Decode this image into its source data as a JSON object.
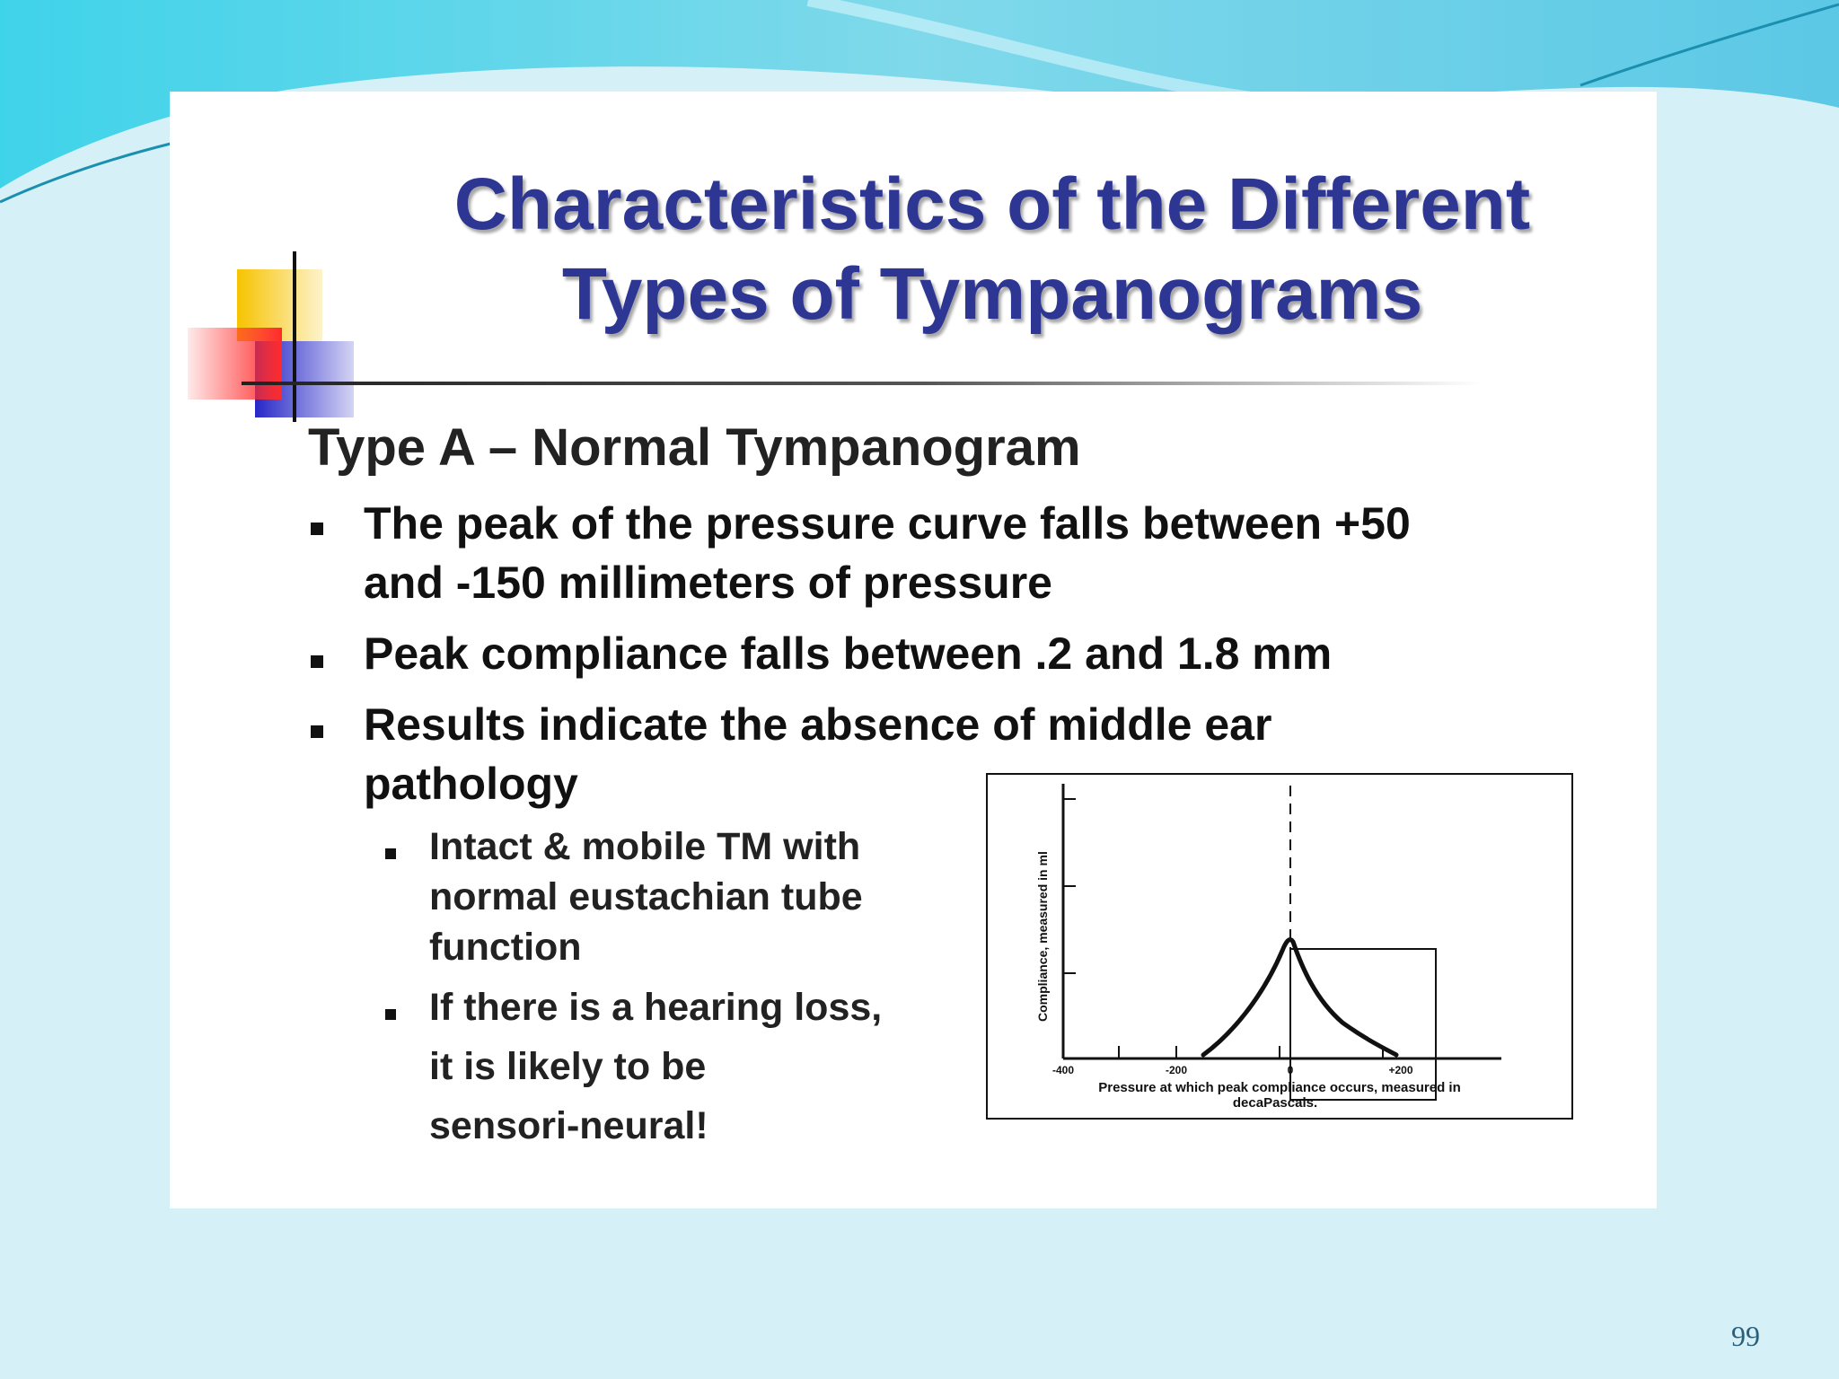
{
  "slide": {
    "title_line1": "Characteristics of the Different",
    "title_line2": "Types of Tympanograms",
    "subheading": "Type A – Normal Tympanogram",
    "bullets": [
      {
        "lines": [
          "The peak of the pressure curve falls between +50",
          "and -150 millimeters of pressure"
        ]
      },
      {
        "lines": [
          "Peak compliance falls between .2 and 1.8 mm"
        ]
      },
      {
        "lines": [
          "Results indicate the absence of middle ear",
          "pathology"
        ]
      }
    ],
    "sub_bullets": [
      {
        "lines": [
          "Intact & mobile TM with",
          "normal eustachian tube",
          "function"
        ]
      },
      {
        "lines": [
          "If there is a hearing loss,",
          "it is likely to be",
          "sensori-neural!"
        ]
      }
    ],
    "page_number": "99"
  },
  "figure": {
    "y_label": "Compliance, measured in ml",
    "x_label_line1": "Pressure at which peak compliance occurs, measured in",
    "x_label_line2": "decaPascals.",
    "x_ticks": [
      "-400",
      "-200",
      "0",
      "+200"
    ]
  },
  "colors": {
    "title": "#2e3694",
    "background": "#d5f1f7",
    "wave": "#5fd7ea",
    "deco_yellow": "#f7c300",
    "deco_red": "#ff2a2a",
    "deco_blue": "#2727c8"
  }
}
